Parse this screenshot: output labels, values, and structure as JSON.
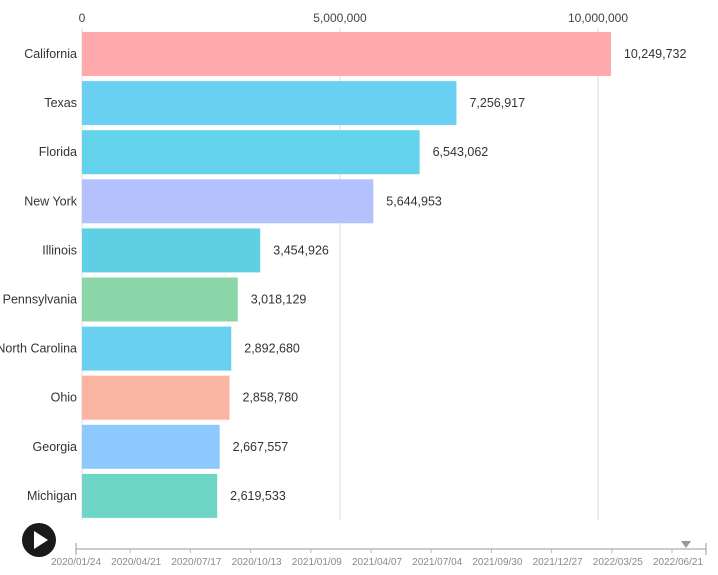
{
  "chart_data": {
    "type": "bar",
    "orientation": "horizontal",
    "categories": [
      "California",
      "Texas",
      "Florida",
      "New York",
      "Illinois",
      "Pennsylvania",
      "North Carolina",
      "Ohio",
      "Georgia",
      "Michigan"
    ],
    "values": [
      10249732,
      7256917,
      6543062,
      5644953,
      3454926,
      3018129,
      2892680,
      2858780,
      2667557,
      2619533
    ],
    "value_labels": [
      "10,249,732",
      "7,256,917",
      "6,543,062",
      "5,644,953",
      "3,454,926",
      "3,018,129",
      "2,892,680",
      "2,858,780",
      "2,667,557",
      "2,619,533"
    ],
    "bar_colors": [
      "#ffa9ad",
      "#69d0f2",
      "#62d3ea",
      "#b5c1fd",
      "#5fd0e3",
      "#8ad6a8",
      "#6ad0f1",
      "#fab4a2",
      "#8dc8fe",
      "#6fd5c7"
    ],
    "x_ticks": [
      0,
      5000000,
      10000000
    ],
    "x_tick_labels": [
      "0",
      "5,000,000",
      "10,000,000"
    ],
    "xlim": [
      0,
      11400000
    ],
    "grid": true,
    "title": "",
    "xlabel": "",
    "ylabel": ""
  },
  "timeline": {
    "labels": [
      "2020/01/24",
      "2020/04/21",
      "2020/07/17",
      "2020/10/13",
      "2021/01/09",
      "2021/04/07",
      "2021/07/04",
      "2021/09/30",
      "2021/12/27",
      "2022/03/25",
      "2022/06/21"
    ],
    "position": 1.0
  },
  "controls": {
    "play_icon": "play-icon",
    "marker_icon": "caret-down-icon"
  }
}
